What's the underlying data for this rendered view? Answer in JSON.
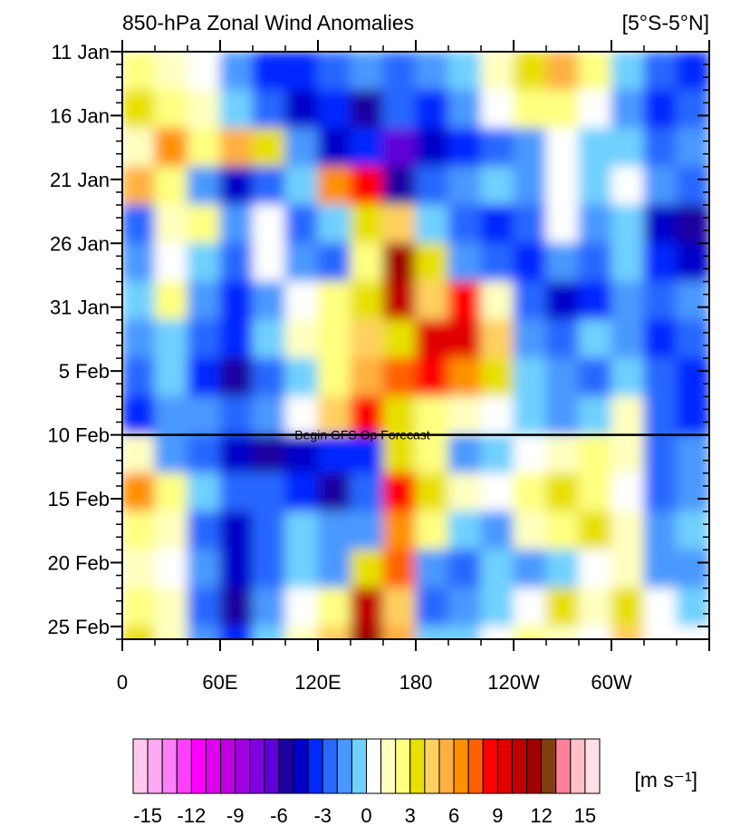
{
  "chart_data": {
    "type": "heatmap",
    "title": "850-hPa Zonal Wind Anomalies",
    "region_label": "[5°S-5°N]",
    "x": [
      0,
      20,
      40,
      60,
      80,
      100,
      120,
      140,
      160,
      180,
      200,
      220,
      240,
      260,
      280,
      300,
      320,
      340
    ],
    "y": [
      0,
      3,
      6,
      9,
      12,
      15,
      18,
      21,
      24,
      27,
      30,
      33,
      36,
      39,
      42,
      45
    ],
    "values": [
      [
        2,
        1,
        0,
        -2,
        -4,
        -4,
        -3,
        -2,
        -3,
        -2,
        -1,
        1,
        3,
        5,
        2,
        -1,
        -3,
        -4
      ],
      [
        3,
        2,
        1,
        -1,
        -3,
        -5,
        -4,
        -6,
        -3,
        -4,
        -2,
        0,
        2,
        2,
        0,
        -2,
        -4,
        -3
      ],
      [
        1,
        6,
        2,
        5,
        3,
        -2,
        -5,
        -4,
        -7,
        -5,
        -4,
        -3,
        -2,
        0,
        -1,
        -1,
        -3,
        -2
      ],
      [
        5,
        2,
        -2,
        -5,
        -3,
        -1,
        6,
        8,
        -6,
        -3,
        -2,
        -1,
        -2,
        0,
        -1,
        0,
        -2,
        -3
      ],
      [
        -3,
        1,
        2,
        -2,
        0,
        -3,
        -1,
        3,
        4,
        -1,
        -3,
        -4,
        -3,
        0,
        -2,
        -1,
        -5,
        -6
      ],
      [
        -2,
        0,
        -1,
        -3,
        0,
        -2,
        -3,
        2,
        11,
        3,
        -2,
        -3,
        -4,
        -2,
        -3,
        -1,
        -4,
        -5
      ],
      [
        -1,
        2,
        -2,
        -4,
        -2,
        0,
        2,
        3,
        10,
        4,
        8,
        1,
        -3,
        -5,
        -4,
        -2,
        -3,
        -2
      ],
      [
        -2,
        -1,
        -3,
        -4,
        -1,
        1,
        2,
        4,
        3,
        9,
        9,
        4,
        -2,
        -3,
        -1,
        -2,
        -4,
        -3
      ],
      [
        -3,
        -1,
        -4,
        -6,
        -3,
        -1,
        2,
        5,
        7,
        8,
        6,
        3,
        -1,
        -2,
        -3,
        -1,
        -3,
        -4
      ],
      [
        -4,
        -2,
        -2,
        -3,
        -2,
        0,
        4,
        8,
        3,
        2,
        1,
        0,
        -1,
        -2,
        -1,
        1,
        -3,
        -4
      ],
      [
        1,
        -2,
        -3,
        -5,
        -6,
        -5,
        -4,
        -4,
        3,
        2,
        -2,
        -1,
        0,
        1,
        2,
        1,
        -3,
        -2
      ],
      [
        6,
        2,
        -1,
        -3,
        -3,
        -4,
        -6,
        -3,
        8,
        3,
        1,
        0,
        2,
        3,
        2,
        0,
        -3,
        -2
      ],
      [
        2,
        1,
        -3,
        -5,
        -3,
        -1,
        -2,
        -2,
        6,
        2,
        -1,
        -2,
        1,
        2,
        3,
        1,
        -2,
        -1
      ],
      [
        1,
        0,
        -2,
        -5,
        -3,
        -1,
        -2,
        3,
        7,
        -2,
        -3,
        -1,
        -2,
        -1,
        0,
        1,
        -2,
        -2
      ],
      [
        2,
        1,
        -3,
        -6,
        -2,
        0,
        2,
        10,
        4,
        -3,
        -2,
        -1,
        0,
        3,
        1,
        3,
        0,
        -1
      ],
      [
        3,
        1,
        -2,
        -4,
        -1,
        1,
        4,
        11,
        5,
        -1,
        -1,
        0,
        2,
        1,
        0,
        4,
        0,
        0
      ]
    ],
    "xlim": [
      0,
      360
    ],
    "ylim": [
      0,
      46
    ],
    "xticks": [
      0,
      {
        "value": 60,
        "label": "60E"
      },
      {
        "value": 120,
        "label": "120E"
      },
      180,
      {
        "value": 240,
        "label": "120W"
      },
      {
        "value": 300,
        "label": "60W"
      },
      {
        "value": 360,
        "label": ""
      }
    ],
    "xminorticks": [
      20,
      40,
      80,
      100,
      140,
      160,
      200,
      220,
      260,
      280,
      320,
      340
    ],
    "yticks": [
      {
        "value": 0,
        "label": "11 Jan"
      },
      {
        "value": 5,
        "label": "16 Jan"
      },
      {
        "value": 10,
        "label": "21 Jan"
      },
      {
        "value": 15,
        "label": "26 Jan"
      },
      {
        "value": 20,
        "label": "31 Jan"
      },
      {
        "value": 25,
        "label": "5 Feb"
      },
      {
        "value": 30,
        "label": "10 Feb"
      },
      {
        "value": 35,
        "label": "15 Feb"
      },
      {
        "value": 40,
        "label": "20 Feb"
      },
      {
        "value": 45,
        "label": "25 Feb"
      }
    ],
    "yminorticks": [
      1,
      2,
      3,
      4,
      6,
      7,
      8,
      9,
      11,
      12,
      13,
      14,
      16,
      17,
      18,
      19,
      21,
      22,
      23,
      24,
      26,
      27,
      28,
      29,
      31,
      32,
      33,
      34,
      36,
      37,
      38,
      39,
      41,
      42,
      43,
      44,
      46
    ],
    "annotation": {
      "text": "Begin GFS Op Forecast",
      "y": 30
    },
    "colorbar": {
      "label": "[m s⁻¹]",
      "levels": [
        -15,
        -14,
        -13,
        -12,
        -11,
        -10,
        -9,
        -8,
        -7,
        -6,
        -5,
        -4,
        -3,
        -2,
        -1,
        0,
        1,
        2,
        3,
        4,
        5,
        6,
        7,
        8,
        9,
        10,
        11,
        12,
        13,
        14,
        15
      ],
      "ticks": [
        -15,
        -12,
        -9,
        -6,
        -3,
        0,
        3,
        6,
        9,
        12,
        15
      ],
      "colors": [
        "#ffc8ec",
        "#ffa8f4",
        "#ff80f8",
        "#ff40ff",
        "#ff00ff",
        "#e000f0",
        "#c000e0",
        "#a000e0",
        "#8000e0",
        "#6000d8",
        "#1c00a0",
        "#0000c8",
        "#0028ff",
        "#2868ff",
        "#4898ff",
        "#70d0ff",
        "#ffffff",
        "#ffffc0",
        "#ffff80",
        "#e8e000",
        "#ffd060",
        "#ffb040",
        "#ff9000",
        "#ff6000",
        "#ff0000",
        "#e00000",
        "#c00000",
        "#a00000",
        "#804010",
        "#ff8098",
        "#ffc0c8",
        "#ffe0e6"
      ]
    }
  }
}
